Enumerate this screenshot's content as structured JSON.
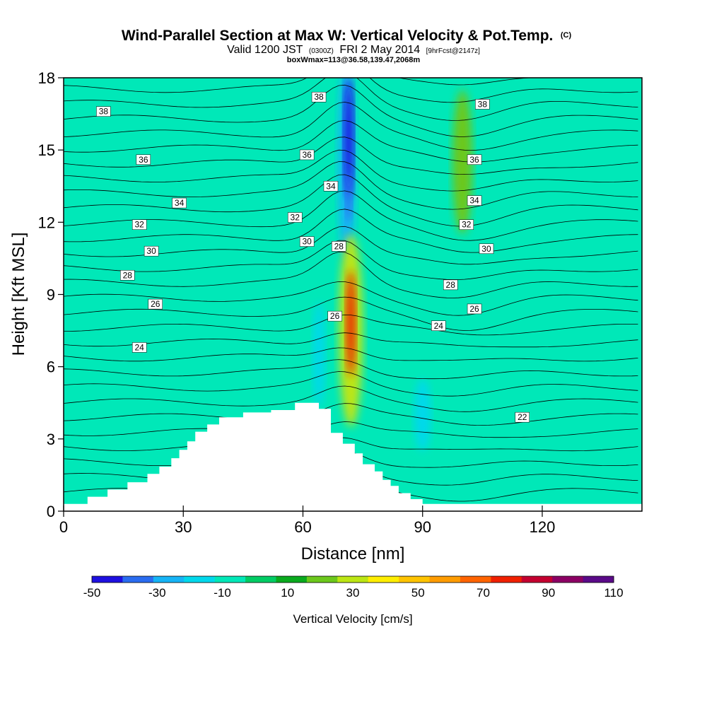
{
  "chart_data": {
    "type": "contour",
    "title": "Wind-Parallel Section at Max W: Vertical Velocity & Pot.Temp.",
    "title_suffix": "(C)",
    "subtitle": {
      "valid": "Valid 1200 JST",
      "zulu": "(0300Z)",
      "date": "FRI 2 May 2014",
      "forecast": "[9hrFcst@2147z]"
    },
    "subtitle2": "boxWmax=113@36.58,139.47,2068m",
    "xlabel": "Distance [nm]",
    "ylabel": "Height [Kft MSL]",
    "xlim": [
      0,
      145
    ],
    "ylim": [
      0,
      18
    ],
    "xticks": [
      0,
      30,
      60,
      90,
      120
    ],
    "yticks": [
      0,
      3,
      6,
      9,
      12,
      15,
      18
    ],
    "colorbar": {
      "label": "Vertical Velocity [cm/s]",
      "levels": [
        -50,
        -40,
        -30,
        -20,
        -10,
        0,
        10,
        20,
        30,
        40,
        50,
        60,
        70,
        80,
        90,
        100,
        110
      ],
      "tick_labels": [
        "-50",
        "-30",
        "-10",
        "10",
        "30",
        "50",
        "70",
        "90",
        "110"
      ],
      "colors": [
        "#1e10e0",
        "#2a6cf0",
        "#16b4f6",
        "#00d8ec",
        "#00e8b8",
        "#00cc64",
        "#0aaa1e",
        "#6cc81c",
        "#bce614",
        "#ffee00",
        "#ffc400",
        "#ff9c00",
        "#ff6400",
        "#f02000",
        "#c40030",
        "#8c0064",
        "#5a0a88"
      ]
    },
    "terrain": [
      [
        0,
        0.3
      ],
      [
        6,
        0.3
      ],
      [
        6,
        0.6
      ],
      [
        11,
        0.6
      ],
      [
        11,
        0.9
      ],
      [
        16,
        0.9
      ],
      [
        16,
        1.2
      ],
      [
        21,
        1.2
      ],
      [
        21,
        1.55
      ],
      [
        24,
        1.55
      ],
      [
        24,
        1.85
      ],
      [
        27,
        1.85
      ],
      [
        27,
        2.2
      ],
      [
        29,
        2.2
      ],
      [
        29,
        2.55
      ],
      [
        31,
        2.55
      ],
      [
        31,
        2.9
      ],
      [
        33,
        2.9
      ],
      [
        33,
        3.3
      ],
      [
        36,
        3.3
      ],
      [
        36,
        3.6
      ],
      [
        39,
        3.6
      ],
      [
        39,
        3.9
      ],
      [
        45,
        3.9
      ],
      [
        45,
        4.1
      ],
      [
        52,
        4.1
      ],
      [
        52,
        4.2
      ],
      [
        58,
        4.2
      ],
      [
        58,
        4.5
      ],
      [
        64,
        4.5
      ],
      [
        64,
        4.25
      ],
      [
        67,
        4.25
      ],
      [
        67,
        3.25
      ],
      [
        70,
        3.25
      ],
      [
        70,
        2.8
      ],
      [
        73,
        2.8
      ],
      [
        73,
        2.4
      ],
      [
        75,
        2.4
      ],
      [
        75,
        1.95
      ],
      [
        78,
        1.95
      ],
      [
        78,
        1.65
      ],
      [
        80,
        1.65
      ],
      [
        80,
        1.3
      ],
      [
        82,
        1.3
      ],
      [
        82,
        1.05
      ],
      [
        84,
        1.05
      ],
      [
        84,
        0.75
      ],
      [
        87,
        0.75
      ],
      [
        87,
        0.5
      ],
      [
        90,
        0.5
      ],
      [
        90,
        0.3
      ],
      [
        145,
        0.3
      ]
    ],
    "w_blobs": [
      {
        "x": 71,
        "y": 14.5,
        "rx": 2.2,
        "ry": 4.2,
        "value": -30
      },
      {
        "x": 71.5,
        "y": 15.5,
        "rx": 1.2,
        "ry": 2.5,
        "value": -50
      },
      {
        "x": 71.5,
        "y": 13.0,
        "rx": 0.8,
        "ry": 1.0,
        "value": -40
      },
      {
        "x": 64,
        "y": 6.5,
        "rx": 1.5,
        "ry": 2.2,
        "value": -20
      },
      {
        "x": 90,
        "y": 4.0,
        "rx": 2.0,
        "ry": 1.5,
        "value": -20
      },
      {
        "x": 100,
        "y": 14.5,
        "rx": 2.5,
        "ry": 3.0,
        "value": 20
      },
      {
        "x": 72,
        "y": 7.5,
        "rx": 3.0,
        "ry": 4.0,
        "value": 30
      },
      {
        "x": 72,
        "y": 7.8,
        "rx": 1.2,
        "ry": 2.2,
        "value": 80
      }
    ],
    "theta_labels": [
      {
        "x": 10,
        "y": 16.6,
        "text": "38"
      },
      {
        "x": 64,
        "y": 17.2,
        "text": "38"
      },
      {
        "x": 105,
        "y": 16.9,
        "text": "38"
      },
      {
        "x": 20,
        "y": 14.6,
        "text": "36"
      },
      {
        "x": 61,
        "y": 14.8,
        "text": "36"
      },
      {
        "x": 103,
        "y": 14.6,
        "text": "36"
      },
      {
        "x": 29,
        "y": 12.8,
        "text": "34"
      },
      {
        "x": 67,
        "y": 13.5,
        "text": "34"
      },
      {
        "x": 103,
        "y": 12.9,
        "text": "34"
      },
      {
        "x": 19,
        "y": 11.9,
        "text": "32"
      },
      {
        "x": 58,
        "y": 12.2,
        "text": "32"
      },
      {
        "x": 101,
        "y": 11.9,
        "text": "32"
      },
      {
        "x": 22,
        "y": 10.8,
        "text": "30"
      },
      {
        "x": 61,
        "y": 11.2,
        "text": "30"
      },
      {
        "x": 106,
        "y": 10.9,
        "text": "30"
      },
      {
        "x": 16,
        "y": 9.8,
        "text": "28"
      },
      {
        "x": 69,
        "y": 11.0,
        "text": "28"
      },
      {
        "x": 97,
        "y": 9.4,
        "text": "28"
      },
      {
        "x": 23,
        "y": 8.6,
        "text": "26"
      },
      {
        "x": 68,
        "y": 8.1,
        "text": "26"
      },
      {
        "x": 103,
        "y": 8.4,
        "text": "26"
      },
      {
        "x": 19,
        "y": 6.8,
        "text": "24"
      },
      {
        "x": 94,
        "y": 7.7,
        "text": "24"
      },
      {
        "x": 115,
        "y": 3.9,
        "text": "22"
      }
    ]
  }
}
